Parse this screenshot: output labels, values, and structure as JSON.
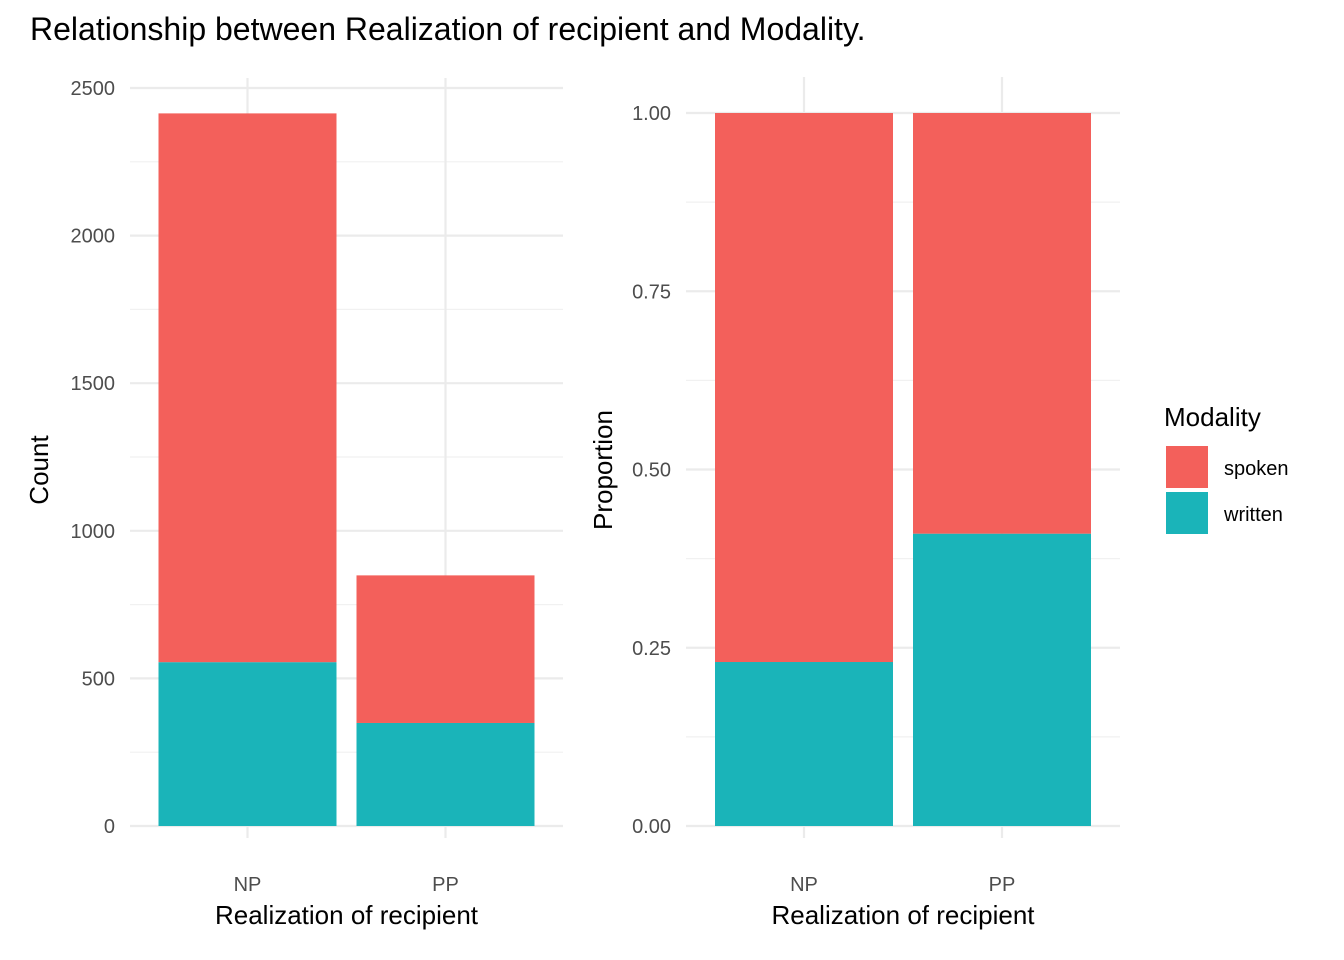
{
  "title": "Relationship between Realization of recipient and Modality.",
  "legend": {
    "title": "Modality",
    "items": [
      {
        "label": "spoken",
        "color": "#F8766D"
      },
      {
        "label": "written",
        "color": "#00BFC4"
      }
    ]
  },
  "colors": {
    "spoken": "#F3605B",
    "written": "#1AB4B9",
    "grid": "#EBEBEB"
  },
  "chart_data": [
    {
      "type": "bar",
      "stacked": true,
      "categories": [
        "NP",
        "PP"
      ],
      "series": [
        {
          "name": "spoken",
          "values": [
            1859,
            500
          ]
        },
        {
          "name": "written",
          "values": [
            555,
            349
          ]
        }
      ],
      "xlabel": "Realization of recipient",
      "ylabel": "Count",
      "ylim": [
        0,
        2500
      ],
      "yticks": [
        "0",
        "500",
        "1000",
        "1500",
        "2000",
        "2500"
      ],
      "grid": true
    },
    {
      "type": "bar",
      "stacked": true,
      "categories": [
        "NP",
        "PP"
      ],
      "series": [
        {
          "name": "spoken",
          "values": [
            0.77,
            0.59
          ]
        },
        {
          "name": "written",
          "values": [
            0.23,
            0.41
          ]
        }
      ],
      "xlabel": "Realization of recipient",
      "ylabel": "Proportion",
      "ylim": [
        0,
        1
      ],
      "yticks": [
        "0.00",
        "0.25",
        "0.50",
        "0.75",
        "1.00"
      ],
      "grid": true
    }
  ]
}
